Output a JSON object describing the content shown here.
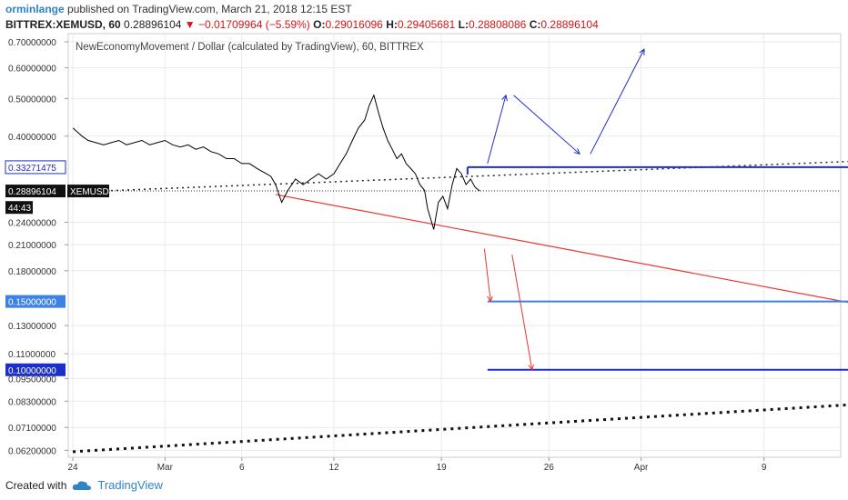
{
  "header": {
    "user": "orminlange",
    "published": "published on TradingView.com, March 21, 2018 12:15 EST",
    "symbol": "BITTREX:XEMUSD, 60",
    "price": "0.28896104",
    "change": "▼ −0.01709964 (−5.59%)",
    "o_label": "O:",
    "o": "0.29016096",
    "h_label": "H:",
    "h": "0.29405681",
    "l_label": "L:",
    "l": "0.28808086",
    "c_label": "C:",
    "c": "0.28896104"
  },
  "footer": {
    "created_with": "Created with",
    "brand": "TradingView"
  },
  "colors": {
    "price": "#000000",
    "support_red": "#e8382f",
    "resistance_blue": "#1d2fc9",
    "light_blue": "#3c82e6",
    "grid": "#e8eaee"
  },
  "chart_data": {
    "type": "line",
    "title": "NewEconomyMovement / Dollar (calculated by TradingView), 60, BITTREX",
    "y_scale": "log",
    "y_ticks": [
      "0.70000000",
      "0.60000000",
      "0.50000000",
      "0.40000000",
      "0.24000000",
      "0.21000000",
      "0.18000000",
      "0.13000000",
      "0.11000000",
      "0.09500000",
      "0.08300000",
      "0.07100000",
      "0.06200000"
    ],
    "y_tick_values": [
      0.7,
      0.6,
      0.5,
      0.4,
      0.24,
      0.21,
      0.18,
      0.13,
      0.11,
      0.095,
      0.083,
      0.071,
      0.062
    ],
    "x_ticks": [
      "24",
      "Mar",
      "6",
      "12",
      "19",
      "26",
      "Apr",
      "9"
    ],
    "x_tick_days": [
      -5,
      1,
      6,
      12,
      19,
      26,
      32,
      40
    ],
    "price_labels": [
      {
        "text": "0.33271475",
        "value": 0.33271475,
        "style": "outline"
      },
      {
        "text": "0.28896104",
        "value": 0.28896104,
        "style": "dark"
      },
      {
        "text": "XEMUSD",
        "value": 0.28896104,
        "style": "dark"
      },
      {
        "text": "44:43",
        "value": 0.262,
        "style": "dark"
      },
      {
        "text": "0.15000000",
        "value": 0.15,
        "style": "lightblue"
      },
      {
        "text": "0.10000000",
        "value": 0.1,
        "style": "blue"
      }
    ],
    "series": [
      {
        "x": [
          -5,
          -4.7,
          -4.4,
          -4,
          -3.5,
          -3,
          -2.5,
          -2,
          -1.5,
          -1,
          -0.5,
          0,
          0.5,
          1,
          1.5,
          2,
          2.5,
          3,
          3.5,
          4,
          4.5,
          5,
          5.5,
          6,
          6.5,
          7,
          7.3,
          7.6,
          7.9,
          8.2,
          8.6,
          9,
          9.5,
          10,
          10.5,
          11,
          11.5,
          12,
          12.4,
          12.8,
          13.2,
          13.6,
          14,
          14.3,
          14.6,
          14.9,
          15.2,
          15.5,
          15.8,
          16.1,
          16.4,
          16.7,
          17,
          17.3,
          17.6,
          17.9,
          18.1,
          18.3,
          18.5,
          18.8,
          19.1,
          19.4,
          19.7,
          20,
          20.3,
          20.6,
          20.9,
          21.2,
          21.5
        ],
        "y": [
          0.42,
          0.41,
          0.4,
          0.39,
          0.385,
          0.38,
          0.385,
          0.39,
          0.38,
          0.385,
          0.39,
          0.38,
          0.385,
          0.39,
          0.38,
          0.375,
          0.38,
          0.37,
          0.375,
          0.365,
          0.36,
          0.35,
          0.35,
          0.34,
          0.34,
          0.33,
          0.325,
          0.32,
          0.315,
          0.3,
          0.27,
          0.29,
          0.31,
          0.3,
          0.31,
          0.32,
          0.31,
          0.32,
          0.34,
          0.36,
          0.39,
          0.42,
          0.44,
          0.48,
          0.51,
          0.46,
          0.42,
          0.39,
          0.37,
          0.35,
          0.36,
          0.34,
          0.33,
          0.32,
          0.3,
          0.29,
          0.26,
          0.245,
          0.23,
          0.27,
          0.28,
          0.26,
          0.3,
          0.33,
          0.32,
          0.3,
          0.31,
          0.295,
          0.289
        ]
      }
    ],
    "lines": {
      "red_support": {
        "x": [
          8.2,
          50
        ],
        "y": [
          0.283,
          0.138
        ]
      },
      "dotted_upper": {
        "x": [
          -5,
          58
        ],
        "y": [
          0.287,
          0.36
        ]
      },
      "dotted_lower": {
        "x": [
          -5,
          58
        ],
        "y": [
          0.0615,
          0.087
        ]
      },
      "level_high": {
        "x": [
          20.7,
          58
        ],
        "y": [
          0.3327,
          0.3327
        ]
      },
      "level_mid": {
        "x": [
          22,
          58
        ],
        "y": [
          0.15,
          0.15
        ]
      },
      "level_low": {
        "x": [
          22,
          58
        ],
        "y": [
          0.1,
          0.1
        ]
      },
      "arrows_blue": [
        {
          "x": [
            22,
            23.2
          ],
          "y": [
            0.34,
            0.51
          ]
        },
        {
          "x": [
            23.7,
            28
          ],
          "y": [
            0.51,
            0.36
          ]
        },
        {
          "x": [
            28.7,
            32.2
          ],
          "y": [
            0.36,
            0.67
          ]
        }
      ],
      "arrows_red": [
        {
          "x": [
            21.8,
            22.2
          ],
          "y": [
            0.205,
            0.15
          ]
        },
        {
          "x": [
            23.6,
            24.9
          ],
          "y": [
            0.198,
            0.1
          ]
        }
      ]
    }
  }
}
